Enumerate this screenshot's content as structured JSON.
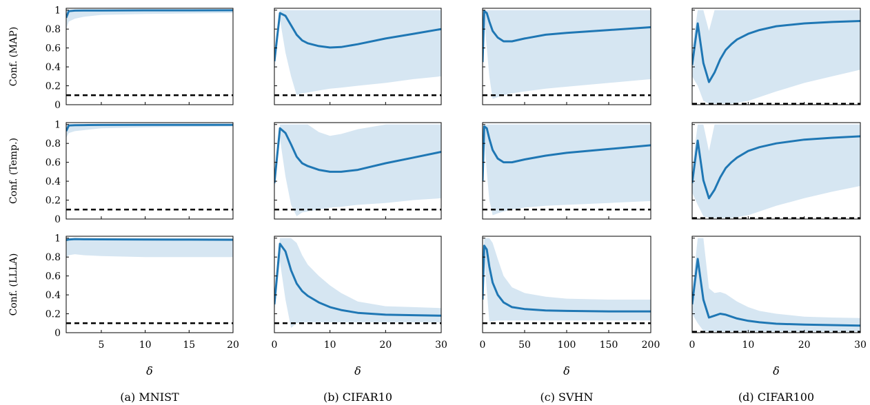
{
  "colors": {
    "mean_line": "#1f77b4",
    "band_fill": "#d6e6f2",
    "baseline": "#000000",
    "frame": "#000000"
  },
  "row_labels": [
    "Conf. (MAP)",
    "Conf. (Temp.)",
    "Conf. (LLLA)"
  ],
  "x_axis_label": "δ",
  "captions": [
    "(a) MNIST",
    "(b) CIFAR10",
    "(c) SVHN",
    "(d) CIFAR100"
  ],
  "chart_data": {
    "type": "line",
    "grid": false,
    "y_ticks": [
      0,
      0.2,
      0.4,
      0.6,
      0.8,
      1
    ],
    "y_tick_labels": [
      "0",
      "0.2",
      "0.4",
      "0.6",
      "0.8",
      "1"
    ],
    "ylim": [
      0,
      1.02
    ],
    "columns": [
      {
        "caption": "(a) MNIST",
        "xlim": [
          1,
          20
        ],
        "x_ticks": [
          5,
          10,
          15,
          20
        ],
        "x_tick_labels": [
          "5",
          "10",
          "15",
          "20"
        ],
        "baseline": 0.1,
        "rows": [
          {
            "method": "MAP",
            "x": [
              1,
              1.3,
              2,
              3,
              5,
              10,
              15,
              20
            ],
            "mean": [
              0.92,
              0.99,
              0.995,
              0.996,
              0.997,
              0.998,
              0.998,
              0.999
            ],
            "lower": [
              0.8,
              0.88,
              0.91,
              0.93,
              0.95,
              0.96,
              0.965,
              0.97
            ],
            "upper": [
              1,
              1,
              1,
              1,
              1,
              1,
              1,
              1
            ]
          },
          {
            "method": "Temp.",
            "x": [
              1,
              1.3,
              2,
              3,
              5,
              10,
              15,
              20
            ],
            "mean": [
              0.93,
              0.99,
              0.993,
              0.994,
              0.995,
              0.996,
              0.997,
              0.997
            ],
            "lower": [
              0.86,
              0.91,
              0.93,
              0.94,
              0.96,
              0.97,
              0.975,
              0.98
            ],
            "upper": [
              1,
              1,
              1,
              1,
              1,
              1,
              1,
              1
            ]
          },
          {
            "method": "LLLA",
            "x": [
              1,
              1.3,
              2,
              3,
              5,
              10,
              15,
              20
            ],
            "mean": [
              0.98,
              0.985,
              0.99,
              0.988,
              0.987,
              0.985,
              0.984,
              0.983
            ],
            "lower": [
              0.8,
              0.82,
              0.83,
              0.82,
              0.81,
              0.8,
              0.8,
              0.8
            ],
            "upper": [
              1,
              1,
              1,
              1,
              1,
              1,
              1,
              1
            ]
          }
        ]
      },
      {
        "caption": "(b) CIFAR10",
        "xlim": [
          0,
          30
        ],
        "x_ticks": [
          0,
          10,
          20,
          30
        ],
        "x_tick_labels": [
          "0",
          "10",
          "20",
          "30"
        ],
        "baseline": 0.1,
        "rows": [
          {
            "method": "MAP",
            "x": [
              0,
              1,
              2,
              3,
              4,
              5,
              6,
              8,
              10,
              12,
              15,
              20,
              25,
              30
            ],
            "mean": [
              0.46,
              0.97,
              0.94,
              0.84,
              0.74,
              0.68,
              0.65,
              0.62,
              0.605,
              0.61,
              0.64,
              0.7,
              0.75,
              0.8
            ],
            "lower": [
              0.35,
              0.9,
              0.55,
              0.3,
              0.1,
              0.12,
              0.13,
              0.15,
              0.17,
              0.18,
              0.2,
              0.23,
              0.27,
              0.3
            ],
            "upper": [
              0.5,
              1,
              1,
              1,
              1,
              1,
              1,
              1,
              1,
              1,
              1,
              1,
              1,
              1
            ]
          },
          {
            "method": "Temp.",
            "x": [
              0,
              1,
              2,
              3,
              4,
              5,
              6,
              8,
              10,
              12,
              15,
              20,
              25,
              30
            ],
            "mean": [
              0.38,
              0.96,
              0.91,
              0.79,
              0.66,
              0.59,
              0.56,
              0.52,
              0.5,
              0.5,
              0.52,
              0.59,
              0.65,
              0.71
            ],
            "lower": [
              0.3,
              0.85,
              0.45,
              0.15,
              0.03,
              0.07,
              0.08,
              0.1,
              0.12,
              0.13,
              0.15,
              0.17,
              0.2,
              0.22
            ],
            "upper": [
              0.45,
              1,
              1,
              1,
              1,
              1,
              1,
              0.92,
              0.88,
              0.9,
              0.95,
              1,
              1,
              1
            ]
          },
          {
            "method": "LLLA",
            "x": [
              0,
              1,
              2,
              3,
              4,
              5,
              6,
              8,
              10,
              12,
              15,
              20,
              25,
              30
            ],
            "mean": [
              0.3,
              0.94,
              0.86,
              0.66,
              0.52,
              0.44,
              0.39,
              0.32,
              0.27,
              0.24,
              0.21,
              0.19,
              0.185,
              0.18
            ],
            "lower": [
              0.22,
              0.75,
              0.35,
              0.05,
              0.1,
              0.11,
              0.11,
              0.11,
              0.11,
              0.11,
              0.11,
              0.11,
              0.11,
              0.11
            ],
            "upper": [
              0.4,
              1,
              1,
              1,
              0.95,
              0.82,
              0.72,
              0.6,
              0.5,
              0.42,
              0.33,
              0.28,
              0.27,
              0.26
            ]
          }
        ]
      },
      {
        "caption": "(c) SVHN",
        "xlim": [
          0,
          200
        ],
        "x_ticks": [
          0,
          50,
          100,
          150,
          200
        ],
        "x_tick_labels": [
          "0",
          "50",
          "100",
          "150",
          "200"
        ],
        "baseline": 0.1,
        "rows": [
          {
            "method": "MAP",
            "x": [
              0,
              2,
              5,
              8,
              12,
              18,
              25,
              35,
              50,
              75,
              100,
              150,
              200
            ],
            "mean": [
              0.45,
              0.99,
              0.97,
              0.88,
              0.78,
              0.71,
              0.67,
              0.67,
              0.7,
              0.74,
              0.76,
              0.79,
              0.82
            ],
            "lower": [
              0.4,
              0.9,
              0.6,
              0.3,
              0.06,
              0.08,
              0.1,
              0.12,
              0.14,
              0.17,
              0.19,
              0.23,
              0.27
            ],
            "upper": [
              0.5,
              1,
              1,
              1,
              1,
              1,
              1,
              1,
              1,
              1,
              1,
              1,
              1
            ]
          },
          {
            "method": "Temp.",
            "x": [
              0,
              2,
              5,
              8,
              12,
              18,
              25,
              35,
              50,
              75,
              100,
              150,
              200
            ],
            "mean": [
              0.4,
              0.98,
              0.96,
              0.85,
              0.73,
              0.64,
              0.6,
              0.6,
              0.63,
              0.67,
              0.7,
              0.74,
              0.78
            ],
            "lower": [
              0.35,
              0.85,
              0.5,
              0.2,
              0.04,
              0.06,
              0.08,
              0.1,
              0.12,
              0.14,
              0.15,
              0.17,
              0.19
            ],
            "upper": [
              0.45,
              1,
              1,
              1,
              1,
              1,
              1,
              1,
              1,
              1,
              1,
              1,
              1
            ]
          },
          {
            "method": "LLLA",
            "x": [
              0,
              2,
              5,
              8,
              12,
              18,
              25,
              35,
              50,
              75,
              100,
              150,
              200
            ],
            "mean": [
              0.35,
              0.92,
              0.88,
              0.7,
              0.53,
              0.4,
              0.32,
              0.27,
              0.25,
              0.235,
              0.23,
              0.225,
              0.225
            ],
            "lower": [
              0.3,
              0.8,
              0.45,
              0.12,
              0.12,
              0.13,
              0.13,
              0.13,
              0.13,
              0.13,
              0.13,
              0.13,
              0.13
            ],
            "upper": [
              0.4,
              1,
              1,
              1,
              0.95,
              0.78,
              0.6,
              0.48,
              0.42,
              0.38,
              0.36,
              0.35,
              0.35
            ]
          }
        ]
      },
      {
        "caption": "(d) CIFAR100",
        "xlim": [
          0,
          30
        ],
        "x_ticks": [
          0,
          10,
          20,
          30
        ],
        "x_tick_labels": [
          "0",
          "10",
          "20",
          "30"
        ],
        "baseline": 0.01,
        "rows": [
          {
            "method": "MAP",
            "x": [
              0,
              1,
              2,
              3,
              4,
              5,
              6,
              7,
              8,
              10,
              12,
              15,
              20,
              25,
              30
            ],
            "mean": [
              0.42,
              0.86,
              0.44,
              0.24,
              0.34,
              0.48,
              0.58,
              0.64,
              0.69,
              0.75,
              0.79,
              0.83,
              0.86,
              0.875,
              0.885
            ],
            "lower": [
              0.3,
              0.2,
              0.04,
              0.01,
              0.01,
              0.01,
              0.01,
              0.01,
              0.02,
              0.04,
              0.08,
              0.14,
              0.23,
              0.3,
              0.37
            ],
            "upper": [
              0.6,
              1,
              1,
              0.78,
              1,
              1,
              1,
              1,
              1,
              1,
              1,
              1,
              1,
              1,
              1
            ]
          },
          {
            "method": "Temp.",
            "x": [
              0,
              1,
              2,
              3,
              4,
              5,
              6,
              7,
              8,
              10,
              12,
              15,
              20,
              25,
              30
            ],
            "mean": [
              0.38,
              0.83,
              0.41,
              0.22,
              0.31,
              0.44,
              0.54,
              0.6,
              0.65,
              0.72,
              0.76,
              0.8,
              0.84,
              0.86,
              0.875
            ],
            "lower": [
              0.28,
              0.15,
              0.03,
              0.01,
              0.01,
              0.01,
              0.01,
              0.01,
              0.02,
              0.04,
              0.08,
              0.14,
              0.22,
              0.29,
              0.35
            ],
            "upper": [
              0.55,
              1,
              1,
              0.72,
              1,
              1,
              1,
              1,
              1,
              1,
              1,
              1,
              1,
              1,
              1
            ]
          },
          {
            "method": "LLLA",
            "x": [
              0,
              1,
              2,
              3,
              4,
              5,
              6,
              7,
              8,
              10,
              12,
              15,
              20,
              25,
              30
            ],
            "mean": [
              0.3,
              0.78,
              0.35,
              0.16,
              0.18,
              0.2,
              0.19,
              0.17,
              0.15,
              0.125,
              0.11,
              0.095,
              0.085,
              0.08,
              0.075
            ],
            "lower": [
              0.2,
              0.1,
              0.02,
              0.01,
              0.01,
              0.01,
              0.01,
              0.01,
              0.01,
              0.01,
              0.01,
              0.01,
              0.01,
              0.01,
              0.01
            ],
            "upper": [
              0.45,
              1,
              1,
              0.47,
              0.42,
              0.43,
              0.41,
              0.37,
              0.33,
              0.27,
              0.23,
              0.2,
              0.17,
              0.16,
              0.155
            ]
          }
        ]
      }
    ]
  }
}
